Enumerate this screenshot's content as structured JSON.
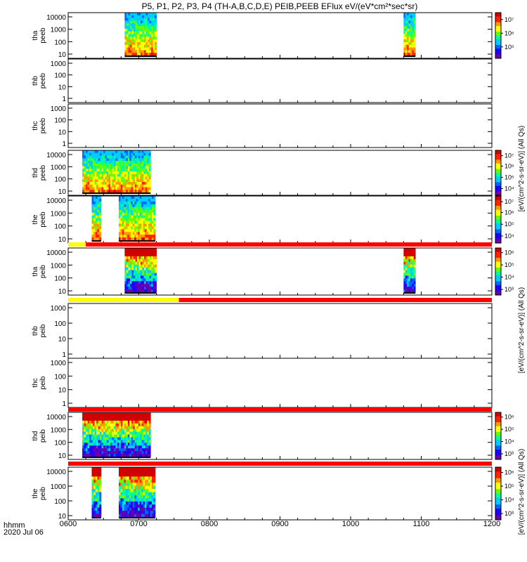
{
  "title": "P5, P1, P2, P3, P4 (TH-A,B,C,D,E) PEIB,PEEB EFlux eV/(eV*cm²*sec*sr)",
  "date_label": "2020 Jul 06",
  "time_unit": "hhmm",
  "x_ticks": [
    "0600",
    "0700",
    "0800",
    "0900",
    "1000",
    "1100",
    "1200"
  ],
  "colorbar_label_a": "[eV/(cm^2-s-sr-eV)] (All Qs)",
  "colorbar_label_b": "[eV/(cm^2-s-sr-eV)] (All Qs)",
  "colorbar_label_c": "[eV/(cm^2-s-sr-eV)] (All Qs)",
  "colorscale": [
    "#6a00a8",
    "#2000ff",
    "#0066ff",
    "#00ccff",
    "#00ff99",
    "#66ff00",
    "#ffff00",
    "#ff9900",
    "#ff2200",
    "#d00000"
  ],
  "chart_data": {
    "type": "heatmap",
    "x_range": [
      "0600",
      "1200"
    ],
    "panels": [
      {
        "probe": "tha",
        "species": "peeb",
        "label": [
          "tha",
          "peeb"
        ],
        "y_ticks": [
          "10",
          "100",
          "1000",
          "10000"
        ],
        "log_y": true,
        "coverage": [
          [
            "0648",
            "0715"
          ],
          [
            "1045",
            "1055"
          ]
        ],
        "has_colorbar": true,
        "cbar_ticks": [
          "10⁵",
          "10⁶",
          "10⁷"
        ],
        "cbar_tick_levels": [
          0.25,
          0.55,
          0.85
        ]
      },
      {
        "probe": "thb",
        "species": "peeb",
        "label": [
          "thb",
          "peeb"
        ],
        "y_ticks": [
          "1",
          "10",
          "100",
          "1000"
        ],
        "log_y": true,
        "coverage": [],
        "has_colorbar": false,
        "cbar_ticks": []
      },
      {
        "probe": "thc",
        "species": "peeb",
        "label": [
          "thc",
          "peeb"
        ],
        "y_ticks": [
          "1",
          "10",
          "100",
          "1000"
        ],
        "log_y": true,
        "coverage": [],
        "has_colorbar": false,
        "cbar_ticks": []
      },
      {
        "probe": "thd",
        "species": "peeb",
        "label": [
          "thd",
          "peeb"
        ],
        "y_ticks": [
          "10",
          "100",
          "1000",
          "10000"
        ],
        "log_y": true,
        "coverage": [
          [
            "0612",
            "0710"
          ]
        ],
        "has_colorbar": true,
        "cbar_ticks": [
          "10⁴",
          "10⁵",
          "10⁶",
          "10⁷"
        ],
        "cbar_tick_levels": [
          0.15,
          0.4,
          0.65,
          0.88
        ]
      },
      {
        "probe": "the",
        "species": "peeb",
        "label": [
          "the",
          "peeb"
        ],
        "y_ticks": [
          "10",
          "100",
          "1000",
          "10000"
        ],
        "log_y": true,
        "coverage": [
          [
            "0620",
            "0628"
          ],
          [
            "0643",
            "0714"
          ]
        ],
        "has_colorbar": true,
        "cbar_ticks": [
          "10⁴",
          "10⁵",
          "10⁶",
          "10⁷"
        ],
        "cbar_tick_levels": [
          0.15,
          0.4,
          0.65,
          0.88
        ]
      },
      {
        "probe": "tha",
        "species": "peib",
        "label": [
          "tha",
          "peib"
        ],
        "y_ticks": [
          "10",
          "100",
          "1000",
          "10000"
        ],
        "log_y": true,
        "coverage": [
          [
            "0648",
            "0715"
          ],
          [
            "1045",
            "1055"
          ]
        ],
        "has_colorbar": true,
        "cbar_ticks": [
          "10³",
          "10⁴",
          "10⁵",
          "10⁶"
        ],
        "cbar_tick_levels": [
          0.12,
          0.38,
          0.64,
          0.9
        ]
      },
      {
        "probe": "thb",
        "species": "peib",
        "label": [
          "thb",
          "peib"
        ],
        "y_ticks": [
          "1",
          "10",
          "100",
          "1000"
        ],
        "log_y": true,
        "coverage": [],
        "has_colorbar": false,
        "cbar_ticks": []
      },
      {
        "probe": "thc",
        "species": "peib",
        "label": [
          "thc",
          "peib"
        ],
        "y_ticks": [
          "1",
          "10",
          "100",
          "1000"
        ],
        "log_y": true,
        "coverage": [],
        "has_colorbar": false,
        "cbar_ticks": []
      },
      {
        "probe": "thd",
        "species": "peib",
        "label": [
          "thd",
          "peib"
        ],
        "y_ticks": [
          "10",
          "100",
          "1000",
          "10000"
        ],
        "log_y": true,
        "coverage": [
          [
            "0612",
            "0710"
          ]
        ],
        "has_colorbar": true,
        "cbar_ticks": [
          "10³",
          "10⁴",
          "10⁵",
          "10⁶"
        ],
        "cbar_tick_levels": [
          0.12,
          0.38,
          0.64,
          0.9
        ]
      },
      {
        "probe": "the",
        "species": "peib",
        "label": [
          "the",
          "peib"
        ],
        "y_ticks": [
          "10",
          "100",
          "1000",
          "10000"
        ],
        "log_y": true,
        "coverage": [
          [
            "0620",
            "0628"
          ],
          [
            "0643",
            "0714"
          ]
        ],
        "has_colorbar": true,
        "cbar_ticks": [
          "10³",
          "10⁴",
          "10⁵",
          "10⁶"
        ],
        "cbar_tick_levels": [
          0.12,
          0.38,
          0.64,
          0.9
        ]
      }
    ],
    "mode_bars": [
      {
        "after_panel": 4,
        "segments": [
          {
            "from": "0600",
            "to": "0615",
            "color": "#ffff00"
          },
          {
            "from": "0615",
            "to": "1200",
            "color": "#ff0000"
          }
        ]
      },
      {
        "after_panel": 5,
        "segments": [
          {
            "from": "0600",
            "to": "0734",
            "color": "#ffff00"
          },
          {
            "from": "0734",
            "to": "1200",
            "color": "#ff0000"
          }
        ]
      },
      {
        "after_panel": 7,
        "segments": [
          {
            "from": "0600",
            "to": "1200",
            "color": "#ff0000"
          }
        ]
      },
      {
        "after_panel": 8,
        "segments": [
          {
            "from": "0600",
            "to": "1200",
            "color": "#ff0000"
          }
        ]
      }
    ]
  }
}
